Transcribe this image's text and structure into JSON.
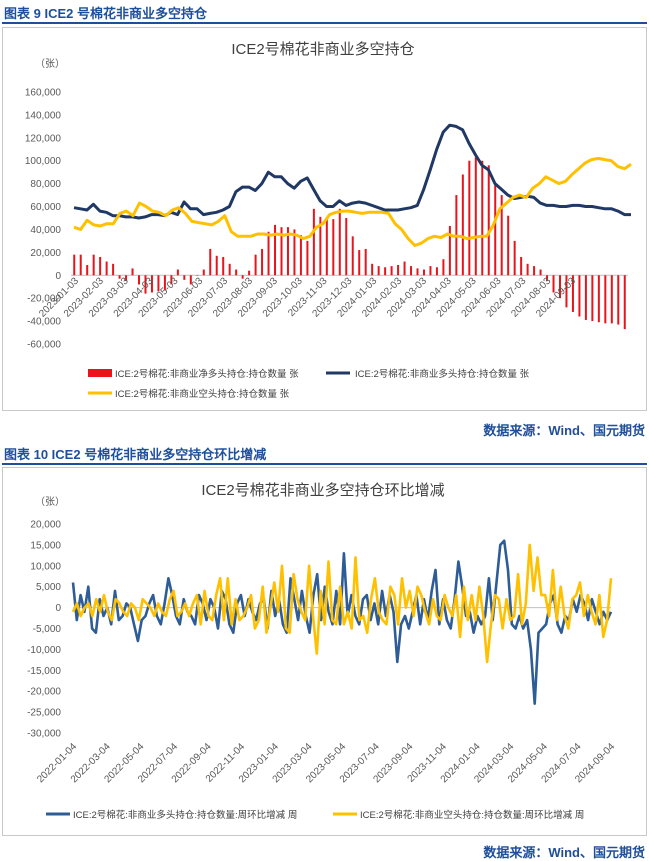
{
  "figure9": {
    "caption": "图表 9  ICE2 号棉花非商业多空持仓",
    "source": "数据来源：Wind、国元期货",
    "chart_data": {
      "type": "bar+line",
      "title": "ICE2号棉花非商业多空持仓",
      "unit": "（张）",
      "ylim": [
        -60000,
        160000
      ],
      "yticks": [
        "-60,000",
        "-40,000",
        "-20,000",
        "0",
        "20,000",
        "40,000",
        "60,000",
        "80,000",
        "100,000",
        "120,000",
        "140,000",
        "160,000"
      ],
      "xticks": [
        "2023-01-03",
        "2023-02-03",
        "2023-03-03",
        "2023-04-03",
        "2023-05-03",
        "2023-06-03",
        "2023-07-03",
        "2023-08-03",
        "2023-09-03",
        "2023-10-03",
        "2023-11-03",
        "2023-12-03",
        "2024-01-03",
        "2024-02-03",
        "2024-03-03",
        "2024-04-03",
        "2024-05-03",
        "2024-06-03",
        "2024-07-03",
        "2024-08-03",
        "2024-09-03"
      ],
      "series": [
        {
          "name": "ICE:2号棉花:非商业净多头持仓:持仓数量 张",
          "type": "bar",
          "color": "#e8141b",
          "values": [
            18000,
            18000,
            9000,
            18000,
            16000,
            12000,
            10000,
            -3000,
            -5000,
            6000,
            -8000,
            -16000,
            -15000,
            -14000,
            -13000,
            -8000,
            5000,
            -4000,
            -8000,
            0,
            5000,
            23000,
            17000,
            16000,
            10000,
            5000,
            -3000,
            4000,
            18000,
            23000,
            38000,
            44000,
            42000,
            42000,
            40000,
            35000,
            30000,
            58000,
            51000,
            50000,
            49000,
            58000,
            50000,
            34000,
            22000,
            23000,
            10000,
            8000,
            7000,
            8000,
            9000,
            12000,
            8000,
            6000,
            5000,
            8000,
            7000,
            14000,
            43000,
            70000,
            88000,
            100000,
            103000,
            100000,
            96000,
            80000,
            70000,
            52000,
            30000,
            16000,
            10000,
            8000,
            5000,
            -5000,
            -15000,
            -20000,
            -28000,
            -32000,
            -36000,
            -39000,
            -40000,
            -41000,
            -42000,
            -42000,
            -43000,
            -47000
          ]
        },
        {
          "name": "ICE:2号棉花:非商业多头持仓:持仓数量 张",
          "type": "line",
          "color": "#203864",
          "values": [
            59000,
            58000,
            57000,
            62000,
            56000,
            55000,
            52000,
            52000,
            51000,
            51000,
            50000,
            51000,
            53000,
            53000,
            52000,
            55000,
            53000,
            64000,
            58000,
            58000,
            53000,
            54000,
            55000,
            57000,
            60000,
            73000,
            77000,
            77000,
            74000,
            80000,
            90000,
            86000,
            86000,
            80000,
            76000,
            82000,
            85000,
            75000,
            65000,
            60000,
            60000,
            65000,
            61000,
            63000,
            64000,
            63000,
            61000,
            59000,
            57000,
            57000,
            57000,
            58000,
            59000,
            61000,
            75000,
            92000,
            110000,
            125000,
            131000,
            130000,
            127000,
            115000,
            105000,
            96000,
            92000,
            80000,
            75000,
            70000,
            67000,
            68000,
            69000,
            68000,
            63000,
            61000,
            61000,
            60000,
            60000,
            61000,
            61000,
            60000,
            60000,
            59000,
            58000,
            58000,
            56000,
            53000,
            53000
          ]
        },
        {
          "name": "ICE:2号棉花:非商业空头持仓:持仓数量 张",
          "type": "line",
          "color": "#ffc000",
          "values": [
            42000,
            40000,
            48000,
            44000,
            43000,
            45000,
            45000,
            54000,
            56000,
            52000,
            63000,
            60000,
            56000,
            55000,
            52000,
            57000,
            59000,
            54000,
            47000,
            46000,
            45000,
            44000,
            47000,
            52000,
            38000,
            34000,
            34000,
            34000,
            36000,
            36000,
            35000,
            36000,
            35000,
            36000,
            35000,
            32000,
            34000,
            42000,
            45000,
            53000,
            55000,
            56000,
            56000,
            55000,
            54000,
            55000,
            55000,
            55000,
            54000,
            45000,
            40000,
            32000,
            26000,
            28000,
            32000,
            34000,
            33000,
            36000,
            34000,
            34000,
            32000,
            33000,
            34000,
            34000,
            44000,
            58000,
            63000,
            68000,
            70000,
            68000,
            76000,
            80000,
            86000,
            83000,
            80000,
            82000,
            88000,
            93000,
            98000,
            101000,
            102000,
            101000,
            100000,
            95000,
            93000,
            97000
          ]
        }
      ]
    }
  },
  "figure10": {
    "caption": "图表 10  ICE2 号棉花非商业多空持仓环比增减",
    "source": "数据来源：Wind、国元期货",
    "chart_data": {
      "type": "line",
      "title": "ICE2号棉花非商业多空持仓环比增减",
      "unit": "（张）",
      "ylim": [
        -30000,
        20000
      ],
      "yticks": [
        "-30,000",
        "-25,000",
        "-20,000",
        "-15,000",
        "-10,000",
        "-5,000",
        "0",
        "5,000",
        "10,000",
        "15,000",
        "20,000"
      ],
      "xticks": [
        "2022-01-04",
        "2022-03-04",
        "2022-05-04",
        "2022-07-04",
        "2022-09-04",
        "2022-11-04",
        "2023-01-04",
        "2023-03-04",
        "2023-05-04",
        "2023-07-04",
        "2023-09-04",
        "2023-11-04",
        "2024-01-04",
        "2024-03-04",
        "2024-05-04",
        "2024-07-04",
        "2024-09-04"
      ],
      "series": [
        {
          "name": "ICE:2号棉花:非商业多头持仓:持仓数量:周环比增减 周",
          "color": "#2e5c97",
          "values": [
            6000,
            -3000,
            3000,
            -1000,
            5000,
            -5000,
            -6000,
            2000,
            -2000,
            0,
            -4000,
            4000,
            -3000,
            -2000,
            1000,
            0,
            -4000,
            -8000,
            -3000,
            -2000,
            1000,
            3000,
            -2000,
            -4000,
            1000,
            7000,
            3000,
            -2000,
            -4000,
            2000,
            -1000,
            -2000,
            -4000,
            3000,
            1000,
            -3000,
            2000,
            0,
            -5000,
            4000,
            2000,
            -4000,
            -6000,
            1000,
            3000,
            -2000,
            2000,
            -1000,
            -3000,
            1000,
            2000,
            -5000,
            4000,
            -2000,
            2000,
            -4000,
            -6000,
            7000,
            2000,
            -3000,
            4000,
            -2000,
            -6000,
            3000,
            8000,
            -3000,
            5000,
            -1000,
            -4000,
            4000,
            -4000,
            13000,
            -2000,
            3000,
            -2000,
            -4000,
            2000,
            3000,
            -3000,
            1000,
            -4000,
            4000,
            -2000,
            3000,
            -1000,
            -13000,
            -4000,
            -2000,
            -5000,
            -1000,
            3000,
            -4000,
            2000,
            -3000,
            4000,
            9000,
            -4000,
            2000,
            -3000,
            -5000,
            2000,
            11000,
            5000,
            -2000,
            -1000,
            -6000,
            -2000,
            -4000,
            -2000,
            7000,
            -3000,
            6000,
            15000,
            16000,
            9000,
            -4000,
            -5000,
            -2000,
            -5000,
            -3000,
            -10000,
            -23000,
            -6000,
            -5000,
            -4000,
            1000,
            3000,
            -4000,
            -6000,
            -2000,
            -3000,
            2000,
            -1000,
            3000,
            1000,
            -3000,
            2000,
            -1000,
            -4000,
            -1000,
            -3000,
            -1000
          ]
        },
        {
          "name": "ICE:2号棉花:非商业空头持仓:持仓数量:周环比增减 周",
          "color": "#ffc000",
          "values": [
            -1000,
            1000,
            -2000,
            0,
            1000,
            -2000,
            2000,
            -1000,
            3000,
            -1000,
            -3000,
            2000,
            1000,
            -1000,
            -2000,
            1000,
            0,
            -3000,
            2000,
            1000,
            0,
            -2000,
            1000,
            -1000,
            -2000,
            2000,
            4000,
            -2000,
            -1000,
            1000,
            -2000,
            1000,
            3000,
            -4000,
            4000,
            -2000,
            -3000,
            3000,
            7000,
            -3000,
            7000,
            -4000,
            2000,
            -3000,
            -2000,
            0,
            3000,
            -5000,
            -3000,
            5000,
            -6000,
            0,
            6000,
            -1000,
            10000,
            -5000,
            -6000,
            8000,
            2000,
            -1000,
            -3000,
            10000,
            -2000,
            -11000,
            4000,
            -4000,
            11000,
            -3000,
            -4000,
            5000,
            -4000,
            -1000,
            -5000,
            12000,
            -3000,
            -2000,
            -6000,
            2000,
            7000,
            -1000,
            -3000,
            -4000,
            5000,
            3000,
            -4000,
            7000,
            0,
            4000,
            -2000,
            5000,
            3000,
            -1000,
            -4000,
            2000,
            -2000,
            -3000,
            3000,
            0,
            -2000,
            3000,
            -7000,
            5000,
            -3000,
            3000,
            -3000,
            5000,
            -2000,
            -13000,
            -4000,
            3000,
            2000,
            -5000,
            2000,
            -3000,
            -2000,
            8000,
            -4000,
            1000,
            15000,
            4000,
            12000,
            3000,
            3000,
            -2000,
            9000,
            -3000,
            5000,
            -2000,
            -5000,
            2000,
            3000,
            6000,
            -2000,
            3000,
            -1000,
            -4000,
            3000,
            -7000,
            -3000,
            7000
          ]
        }
      ]
    }
  }
}
